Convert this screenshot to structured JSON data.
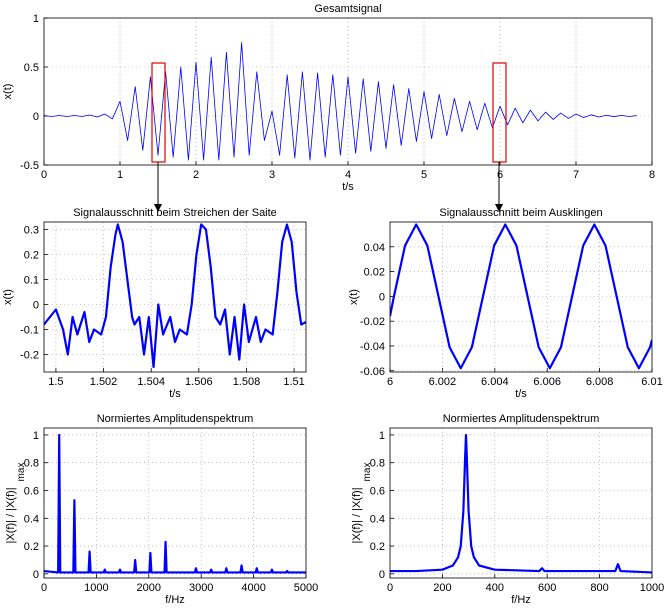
{
  "chart_data": [
    {
      "type": "line",
      "title": "Gesamtsignal",
      "xlabel": "t/s",
      "ylabel": "x(t)",
      "color": "#0000ff",
      "line_width": 0.8,
      "grid": true,
      "xlim": [
        0,
        8
      ],
      "ylim": [
        -0.5,
        1
      ],
      "xticks": [
        0,
        1,
        2,
        3,
        4,
        5,
        6,
        7,
        8
      ],
      "yticks": [
        -0.5,
        0,
        0.5,
        1
      ],
      "x": [
        0,
        0.1,
        0.2,
        0.3,
        0.4,
        0.5,
        0.6,
        0.7,
        0.8,
        0.9,
        1.0,
        1.1,
        1.2,
        1.3,
        1.4,
        1.5,
        1.6,
        1.7,
        1.8,
        1.9,
        2.0,
        2.1,
        2.2,
        2.3,
        2.4,
        2.5,
        2.6,
        2.7,
        2.8,
        2.9,
        3.0,
        3.1,
        3.2,
        3.3,
        3.4,
        3.5,
        3.6,
        3.7,
        3.8,
        3.9,
        4.0,
        4.1,
        4.2,
        4.3,
        4.4,
        4.5,
        4.6,
        4.7,
        4.8,
        4.9,
        5.0,
        5.1,
        5.2,
        5.3,
        5.4,
        5.5,
        5.6,
        5.7,
        5.8,
        5.9,
        6.0,
        6.1,
        6.2,
        6.3,
        6.4,
        6.5,
        6.6,
        6.7,
        6.8,
        6.9,
        7.0,
        7.1,
        7.2,
        7.3,
        7.4,
        7.5,
        7.6,
        7.7,
        7.8
      ],
      "values": [
        0.005,
        -0.005,
        0.005,
        -0.005,
        0.005,
        -0.005,
        0.01,
        -0.01,
        0.02,
        -0.03,
        0.15,
        -0.25,
        0.3,
        -0.35,
        0.4,
        -0.4,
        0.45,
        -0.42,
        0.5,
        -0.45,
        0.55,
        -0.45,
        0.6,
        -0.45,
        0.65,
        -0.42,
        0.75,
        -0.4,
        0.45,
        -0.25,
        0.05,
        -0.4,
        0.42,
        -0.43,
        0.45,
        -0.45,
        0.44,
        -0.42,
        0.42,
        -0.4,
        0.4,
        -0.38,
        0.38,
        -0.36,
        0.35,
        -0.33,
        0.32,
        -0.3,
        0.28,
        -0.26,
        0.25,
        -0.23,
        0.22,
        -0.2,
        0.18,
        -0.16,
        0.15,
        -0.14,
        0.13,
        -0.12,
        0.1,
        -0.09,
        0.08,
        -0.07,
        0.06,
        -0.05,
        0.04,
        -0.035,
        0.03,
        -0.025,
        0.02,
        -0.015,
        0.012,
        -0.01,
        0.008,
        -0.007,
        0.006,
        -0.005,
        0.004
      ]
    },
    {
      "type": "line",
      "title": "Signalausschnitt beim Streichen der Saite",
      "xlabel": "t/s",
      "ylabel": "x(t)",
      "color": "#0000ff",
      "line_width": 2.2,
      "grid": true,
      "xlim": [
        1.4995,
        1.5105
      ],
      "ylim": [
        -0.27,
        0.33
      ],
      "xticks": [
        1.5,
        1.502,
        1.504,
        1.506,
        1.508,
        1.51
      ],
      "yticks": [
        -0.2,
        -0.1,
        0,
        0.1,
        0.2,
        0.3
      ],
      "x": [
        1.4995,
        1.5,
        1.5003,
        1.5005,
        1.5007,
        1.5009,
        1.5012,
        1.5014,
        1.5016,
        1.5019,
        1.5021,
        1.5023,
        1.5025,
        1.5026,
        1.5028,
        1.503,
        1.5032,
        1.5033,
        1.5035,
        1.5037,
        1.5039,
        1.5041,
        1.5043,
        1.5045,
        1.5048,
        1.505,
        1.5052,
        1.5055,
        1.5057,
        1.5059,
        1.5061,
        1.5063,
        1.5065,
        1.5067,
        1.5069,
        1.5071,
        1.5073,
        1.5075,
        1.5077,
        1.5079,
        1.5081,
        1.5084,
        1.5086,
        1.5088,
        1.5091,
        1.5093,
        1.5095,
        1.5097,
        1.5099,
        1.5101,
        1.5103,
        1.5105
      ],
      "values": [
        -0.08,
        -0.02,
        -0.1,
        -0.2,
        -0.05,
        -0.12,
        -0.03,
        -0.15,
        -0.1,
        -0.12,
        -0.05,
        0.15,
        0.28,
        0.32,
        0.25,
        0.1,
        -0.05,
        -0.08,
        -0.05,
        -0.2,
        -0.05,
        -0.25,
        0.0,
        -0.12,
        -0.05,
        -0.15,
        -0.1,
        -0.12,
        0.0,
        0.2,
        0.32,
        0.3,
        0.15,
        -0.05,
        -0.08,
        -0.02,
        -0.2,
        -0.05,
        -0.22,
        0.0,
        -0.15,
        -0.05,
        -0.15,
        -0.1,
        -0.12,
        0.05,
        0.25,
        0.32,
        0.25,
        0.05,
        -0.08,
        -0.07
      ]
    },
    {
      "type": "line",
      "title": "Signalausschnitt beim Ausklingen",
      "xlabel": "t/s",
      "ylabel": "x(t)",
      "color": "#0000ff",
      "line_width": 2.2,
      "grid": true,
      "xlim": [
        6,
        6.01
      ],
      "ylim": [
        -0.061,
        0.06
      ],
      "xticks": [
        6,
        6.002,
        6.004,
        6.006,
        6.008,
        6.01
      ],
      "yticks": [
        -0.06,
        -0.04,
        -0.02,
        0,
        0.02,
        0.04
      ],
      "x": [
        6.0,
        6.00015,
        6.000575,
        6.001,
        6.001425,
        6.00185,
        6.002275,
        6.0027,
        6.003125,
        6.00355,
        6.003975,
        6.0044,
        6.004825,
        6.00525,
        6.005675,
        6.0061,
        6.006525,
        6.00695,
        6.007375,
        6.0078,
        6.008225,
        6.00865,
        6.009075,
        6.0095,
        6.009925,
        6.01
      ],
      "values": [
        -0.016,
        0,
        0.041,
        0.058,
        0.041,
        0,
        -0.041,
        -0.058,
        -0.041,
        0,
        0.041,
        0.058,
        0.041,
        0,
        -0.041,
        -0.058,
        -0.041,
        0,
        0.041,
        0.058,
        0.041,
        0,
        -0.041,
        -0.058,
        -0.041,
        -0.035
      ]
    },
    {
      "type": "line",
      "title": "Normiertes Amplitudenspektrum",
      "xlabel": "f/Hz",
      "ylabel": "|X(f)| / |X(f)|",
      "ylabel_subscript": "max",
      "color": "#0000ff",
      "line_width": 2.2,
      "grid": true,
      "xlim": [
        0,
        5000
      ],
      "ylim": [
        -0.03,
        1.05
      ],
      "xticks": [
        0,
        1000,
        2000,
        3000,
        4000,
        5000
      ],
      "yticks": [
        0,
        0.2,
        0.4,
        0.6,
        0.8,
        1
      ],
      "x": [
        0,
        270,
        290,
        310,
        560,
        580,
        600,
        850,
        870,
        890,
        1140,
        1160,
        1180,
        1430,
        1450,
        1470,
        1720,
        1740,
        1760,
        2010,
        2030,
        2050,
        2300,
        2320,
        2340,
        2880,
        2900,
        2920,
        3170,
        3190,
        3210,
        3460,
        3480,
        3500,
        3750,
        3770,
        3790,
        4040,
        4060,
        4080,
        4330,
        4350,
        4370,
        4620,
        4640,
        4660,
        5000
      ],
      "values": [
        0.02,
        0.01,
        1,
        0.01,
        0.01,
        0.53,
        0.01,
        0.01,
        0.16,
        0.01,
        0.01,
        0.03,
        0.01,
        0.01,
        0.03,
        0.01,
        0.01,
        0.1,
        0.01,
        0.01,
        0.15,
        0.01,
        0.01,
        0.23,
        0.01,
        0.01,
        0.04,
        0.01,
        0.01,
        0.03,
        0.01,
        0.01,
        0.04,
        0.01,
        0.01,
        0.06,
        0.01,
        0.01,
        0.04,
        0.01,
        0.01,
        0.03,
        0.01,
        0.01,
        0.02,
        0.01,
        0.01
      ]
    },
    {
      "type": "line",
      "title": "Normiertes Amplitudenspektrum",
      "xlabel": "f/Hz",
      "ylabel": "|X(f)| / |X(f)|",
      "ylabel_subscript": "max",
      "color": "#0000ff",
      "line_width": 2.2,
      "grid": true,
      "xlim": [
        0,
        1000
      ],
      "ylim": [
        -0.03,
        1.05
      ],
      "xticks": [
        0,
        200,
        400,
        600,
        800,
        1000
      ],
      "yticks": [
        0,
        0.2,
        0.4,
        0.6,
        0.8,
        1
      ],
      "x": [
        0,
        100,
        200,
        240,
        260,
        270,
        280,
        287,
        290,
        293,
        300,
        310,
        320,
        340,
        400,
        570,
        580,
        590,
        860,
        870,
        880,
        1000
      ],
      "values": [
        0.02,
        0.02,
        0.03,
        0.06,
        0.12,
        0.2,
        0.45,
        0.85,
        1,
        0.85,
        0.45,
        0.2,
        0.12,
        0.06,
        0.03,
        0.02,
        0.04,
        0.02,
        0.02,
        0.07,
        0.02,
        0.01
      ]
    }
  ]
}
